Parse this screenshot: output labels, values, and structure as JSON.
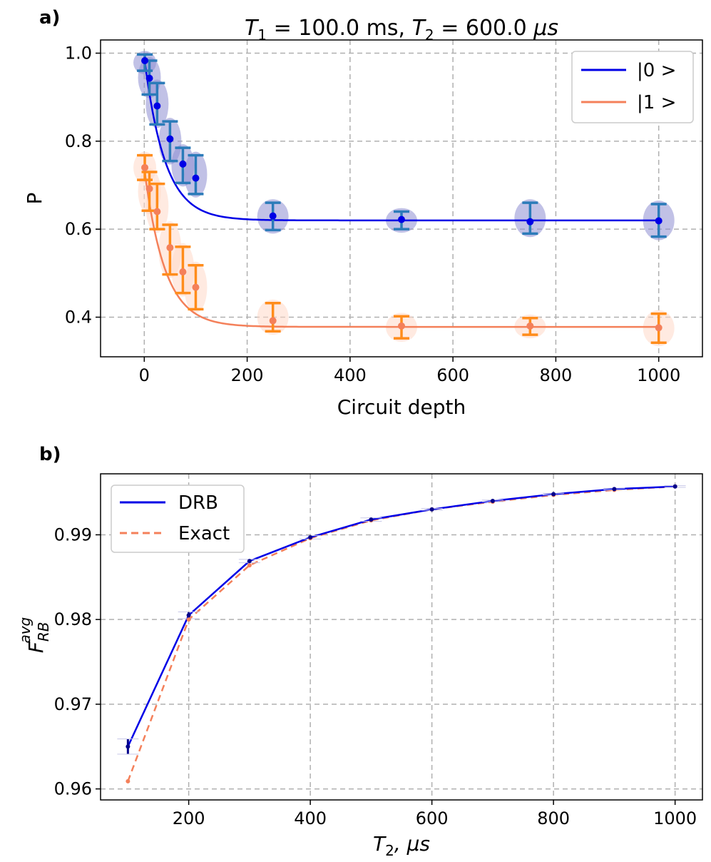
{
  "chart_data": [
    {
      "type": "scatter",
      "panel_label": "a)",
      "title": "T1 = 100.0 ms, T2 = 600.0 μs",
      "title_parts": {
        "t1_sym": "T",
        "t1_sub": "1",
        "t1_val": " = 100.0 ms, ",
        "t2_sym": "T",
        "t2_sub": "2",
        "t2_val": " = 600.0 ",
        "unit": "μs"
      },
      "xlabel": "Circuit depth",
      "ylabel": "P",
      "xlim": [
        -85,
        1085
      ],
      "ylim": [
        0.31,
        1.03
      ],
      "xticks": [
        0,
        200,
        400,
        600,
        800,
        1000
      ],
      "yticks": [
        0.4,
        0.6,
        0.8,
        1.0
      ],
      "ytick_labels": [
        "0.4",
        "0.6",
        "0.8",
        "1.0"
      ],
      "legend_position": "top-right",
      "series": [
        {
          "name": "|0 >",
          "fit_color": "#0000e6",
          "point_color": "#0000e6",
          "err_color": "#2b7bb9",
          "violin_color": "#8e8ed1",
          "fit": {
            "a": 0.37,
            "b": 0.62,
            "tau": 40
          },
          "x": [
            1,
            10,
            25,
            50,
            75,
            100,
            250,
            500,
            750,
            1000
          ],
          "y": [
            0.983,
            0.943,
            0.88,
            0.805,
            0.748,
            0.716,
            0.63,
            0.622,
            0.617,
            0.619
          ],
          "err_lo": [
            0.96,
            0.906,
            0.838,
            0.755,
            0.705,
            0.68,
            0.598,
            0.6,
            0.59,
            0.583
          ],
          "err_hi": [
            0.997,
            0.983,
            0.932,
            0.845,
            0.785,
            0.768,
            0.66,
            0.64,
            0.66,
            0.657
          ]
        },
        {
          "name": "|1 >",
          "fit_color": "#f4805a",
          "point_color": "#f4805a",
          "err_color": "#ff8c1a",
          "violin_color": "#ffd8c8",
          "fit": {
            "a": 0.36,
            "b": 0.378,
            "tau": 40
          },
          "x": [
            1,
            10,
            25,
            50,
            75,
            100,
            250,
            500,
            750,
            1000
          ],
          "y": [
            0.74,
            0.692,
            0.64,
            0.558,
            0.503,
            0.468,
            0.392,
            0.38,
            0.38,
            0.376
          ],
          "err_lo": [
            0.712,
            0.642,
            0.6,
            0.497,
            0.455,
            0.418,
            0.368,
            0.352,
            0.36,
            0.342
          ],
          "err_hi": [
            0.768,
            0.73,
            0.703,
            0.61,
            0.56,
            0.518,
            0.432,
            0.402,
            0.398,
            0.408
          ]
        }
      ]
    },
    {
      "type": "line",
      "panel_label": "b)",
      "xlabel": "T2, μs",
      "xlabel_parts": {
        "sym": "T",
        "sub": "2",
        "rest": ", μs"
      },
      "ylabel": "F_RB^avg",
      "ylabel_parts": {
        "sym": "F",
        "sub": "RB",
        "sup": "avg"
      },
      "xlim": [
        55,
        1045
      ],
      "ylim": [
        0.9587,
        0.9972
      ],
      "xticks": [
        200,
        400,
        600,
        800,
        1000
      ],
      "yticks": [
        0.96,
        0.97,
        0.98,
        0.99
      ],
      "ytick_labels": [
        "0.96",
        "0.97",
        "0.98",
        "0.99"
      ],
      "legend_position": "top-left",
      "x": [
        100,
        200,
        300,
        400,
        500,
        600,
        700,
        800,
        900,
        1000
      ],
      "series": [
        {
          "name": "DRB",
          "color": "#0000e6",
          "style": "solid",
          "values": [
            0.965,
            0.9805,
            0.9869,
            0.9897,
            0.9918,
            0.993,
            0.994,
            0.9948,
            0.9954,
            0.9957
          ],
          "err": [
            0.0009,
            0.0004,
            0.0002,
            0.0002,
            0.0002,
            0.0001,
            0.0001,
            0.0001,
            0.0001,
            0.0001
          ]
        },
        {
          "name": "Exact",
          "color": "#f4805a",
          "style": "dashed",
          "values": [
            0.9609,
            0.98,
            0.9864,
            0.9896,
            0.9917,
            0.993,
            0.9939,
            0.9947,
            0.9953,
            0.9957
          ]
        }
      ]
    }
  ]
}
